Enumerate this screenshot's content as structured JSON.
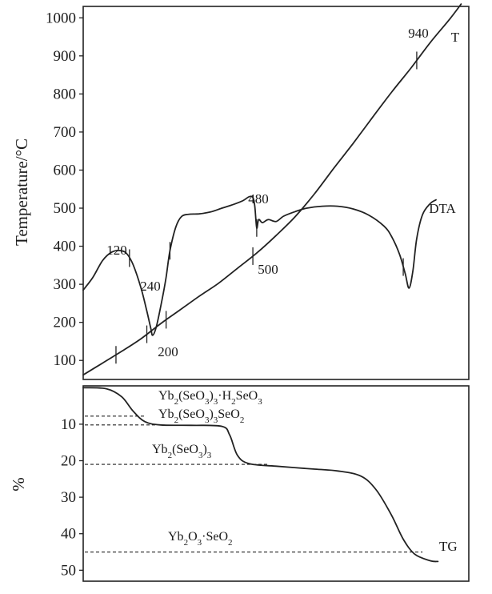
{
  "chart_data": [
    {
      "type": "line",
      "ylabel": "Temperature/°C",
      "ylim": [
        50,
        1030
      ],
      "yticks": [
        100,
        200,
        300,
        400,
        500,
        600,
        700,
        800,
        900,
        1000
      ],
      "series": [
        {
          "name": "T",
          "values": [
            [
              0,
              62
            ],
            [
              0.05,
              93
            ],
            [
              0.1,
              124
            ],
            [
              0.15,
              157
            ],
            [
              0.2,
              196
            ],
            [
              0.25,
              232
            ],
            [
              0.3,
              268
            ],
            [
              0.35,
              302
            ],
            [
              0.4,
              342
            ],
            [
              0.45,
              382
            ],
            [
              0.5,
              428
            ],
            [
              0.55,
              478
            ],
            [
              0.6,
              538
            ],
            [
              0.65,
              605
            ],
            [
              0.7,
              670
            ],
            [
              0.75,
              738
            ],
            [
              0.8,
              805
            ],
            [
              0.85,
              868
            ],
            [
              0.9,
              935
            ],
            [
              0.95,
              996
            ],
            [
              0.98,
              1036
            ]
          ]
        },
        {
          "name": "DTA",
          "values": [
            [
              0,
              285
            ],
            [
              0.025,
              318
            ],
            [
              0.05,
              362
            ],
            [
              0.075,
              385
            ],
            [
              0.1,
              388
            ],
            [
              0.115,
              378
            ],
            [
              0.13,
              350
            ],
            [
              0.15,
              290
            ],
            [
              0.165,
              230
            ],
            [
              0.175,
              186
            ],
            [
              0.18,
              166
            ],
            [
              0.19,
              190
            ],
            [
              0.205,
              262
            ],
            [
              0.215,
              318
            ],
            [
              0.225,
              388
            ],
            [
              0.24,
              450
            ],
            [
              0.255,
              478
            ],
            [
              0.275,
              484
            ],
            [
              0.3,
              485
            ],
            [
              0.33,
              490
            ],
            [
              0.36,
              500
            ],
            [
              0.39,
              510
            ],
            [
              0.415,
              520
            ],
            [
              0.43,
              530
            ],
            [
              0.44,
              528
            ],
            [
              0.445,
              505
            ],
            [
              0.45,
              448
            ],
            [
              0.455,
              470
            ],
            [
              0.465,
              462
            ],
            [
              0.48,
              470
            ],
            [
              0.5,
              465
            ],
            [
              0.52,
              479
            ],
            [
              0.55,
              491
            ],
            [
              0.58,
              500
            ],
            [
              0.62,
              505
            ],
            [
              0.66,
              505
            ],
            [
              0.7,
              498
            ],
            [
              0.74,
              482
            ],
            [
              0.78,
              453
            ],
            [
              0.8,
              425
            ],
            [
              0.82,
              380
            ],
            [
              0.835,
              328
            ],
            [
              0.845,
              290
            ],
            [
              0.855,
              335
            ],
            [
              0.865,
              420
            ],
            [
              0.88,
              483
            ],
            [
              0.9,
              512
            ],
            [
              0.915,
              522
            ]
          ]
        }
      ],
      "annotations": [
        "120",
        "240",
        "200",
        "480",
        "500",
        "940",
        "T",
        "DTA"
      ]
    },
    {
      "type": "line",
      "ylabel": "%",
      "ylim": [
        53,
        -0.5
      ],
      "yticks": [
        10,
        20,
        30,
        40,
        50
      ],
      "series": [
        {
          "name": "TG",
          "values": [
            [
              0,
              0
            ],
            [
              0.06,
              0.3
            ],
            [
              0.1,
              2.5
            ],
            [
              0.13,
              6.5
            ],
            [
              0.16,
              9.3
            ],
            [
              0.2,
              10.2
            ],
            [
              0.28,
              10.3
            ],
            [
              0.36,
              10.6
            ],
            [
              0.38,
              13
            ],
            [
              0.4,
              18.5
            ],
            [
              0.43,
              20.8
            ],
            [
              0.5,
              21.5
            ],
            [
              0.6,
              22.3
            ],
            [
              0.66,
              22.8
            ],
            [
              0.72,
              24.2
            ],
            [
              0.76,
              28
            ],
            [
              0.8,
              35
            ],
            [
              0.83,
              41.5
            ],
            [
              0.86,
              45.6
            ],
            [
              0.9,
              47.4
            ],
            [
              0.92,
              47.6
            ]
          ]
        }
      ],
      "levels": [
        {
          "label": "Yb2(SeO3)3·H2SeO3",
          "y": 7.8
        },
        {
          "label": "Yb2(SeO3)3SeO2",
          "y": 10.2
        },
        {
          "label": "Yb2(SeO3)3",
          "y": 21
        },
        {
          "label": "Yb2O3·SeO2",
          "y": 45
        }
      ]
    }
  ],
  "figure": {
    "top": {
      "ylabel": "Temperature/°C",
      "ann_120": "120",
      "ann_240": "240",
      "ann_200": "200",
      "ann_480": "480",
      "ann_500": "500",
      "ann_940": "940",
      "label_t": "T",
      "label_dta": "DTA"
    },
    "bottom": {
      "ylabel": "%",
      "label_tg": "TG",
      "comp1": {
        "base": "Yb",
        "s1": "2",
        "mid": "(SeO",
        "s2": "3",
        "mid2": ")",
        "s3": "3",
        "tail": "·H",
        "s4": "2",
        "tail2": "SeO",
        "s5": "3"
      },
      "comp2": {
        "base": "Yb",
        "s1": "2",
        "mid": "(SeO",
        "s2": "3",
        "mid2": ")",
        "s3": "3",
        "tail": "SeO",
        "s4": "2"
      },
      "comp3": {
        "base": "Yb",
        "s1": "2",
        "mid": "(SeO",
        "s2": "3",
        "mid2": ")",
        "s3": "3"
      },
      "comp4": {
        "base": "Yb",
        "s1": "2",
        "mid": "O",
        "s2": "3",
        "mid2": "·SeO",
        "s3": "2"
      }
    }
  }
}
